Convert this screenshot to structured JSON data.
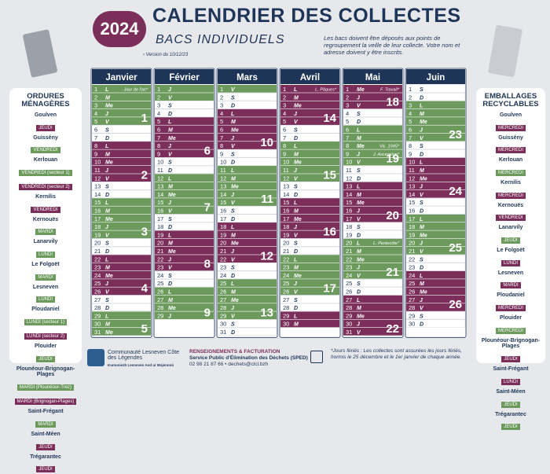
{
  "header": {
    "year": "2024",
    "title": "CALENDRIER DES COLLECTES",
    "subtitle": "BACS INDIVIDUELS",
    "version": "› Version du 10/12/23",
    "note": "Les bacs doivent être déposés aux points de regroupement la veille de leur collecte. Votre nom et adresse doivent y être inscrits."
  },
  "left_panel": {
    "title": "ORDURES MÉNAGÈRES",
    "entries": [
      {
        "town": "Goulven",
        "tags": [
          {
            "text": "JEUDI",
            "color": "#7a2e59"
          }
        ]
      },
      {
        "town": "Guissény",
        "tags": [
          {
            "text": "VENDREDI",
            "color": "#6b9a5c"
          }
        ]
      },
      {
        "town": "Kerlouan",
        "tags": [
          {
            "text": "VENDREDI (secteur 1)",
            "color": "#6b9a5c"
          },
          {
            "text": "VENDREDI (secteur 2)",
            "color": "#7a2e59"
          }
        ]
      },
      {
        "town": "Kernilis",
        "tags": [
          {
            "text": "VENDREDI",
            "color": "#7a2e59"
          }
        ]
      },
      {
        "town": "Kernouës",
        "tags": [
          {
            "text": "MARDI",
            "color": "#6b9a5c"
          }
        ]
      },
      {
        "town": "Lanarvily",
        "tags": [
          {
            "text": "LUNDI",
            "color": "#6b9a5c"
          }
        ]
      },
      {
        "town": "Le Folgoët",
        "tags": [
          {
            "text": "MARDI",
            "color": "#6b9a5c"
          }
        ]
      },
      {
        "town": "Lesneven",
        "tags": [
          {
            "text": "LUNDI",
            "color": "#6b9a5c"
          }
        ]
      },
      {
        "town": "Ploudaniel",
        "tags": [
          {
            "text": "LUNDI (secteur 1)",
            "color": "#6b9a5c"
          },
          {
            "text": "LUNDI (secteur 2)",
            "color": "#7a2e59"
          }
        ]
      },
      {
        "town": "Plouider",
        "tags": [
          {
            "text": "JEUDI",
            "color": "#6b9a5c"
          }
        ]
      },
      {
        "town": "Plounéour-Brignogan-Plages",
        "tags": [
          {
            "text": "MARDI (Plounéour-Trez)",
            "color": "#6b9a5c"
          },
          {
            "text": "MARDI (Brignogan-Plages)",
            "color": "#7a2e59"
          }
        ]
      },
      {
        "town": "Saint-Frégant",
        "tags": [
          {
            "text": "MARDI",
            "color": "#6b9a5c"
          }
        ]
      },
      {
        "town": "Saint-Méen",
        "tags": [
          {
            "text": "JEUDI",
            "color": "#7a2e59"
          }
        ]
      },
      {
        "town": "Trégarantec",
        "tags": [
          {
            "text": "JEUDI",
            "color": "#7a2e59"
          }
        ]
      }
    ]
  },
  "right_panel": {
    "title": "EMBALLAGES RECYCLABLES",
    "entries": [
      {
        "town": "Goulven",
        "tags": [
          {
            "text": "MERCREDI",
            "color": "#7a2e59"
          }
        ]
      },
      {
        "town": "Guissény",
        "tags": [
          {
            "text": "MERCREDI",
            "color": "#7a2e59"
          }
        ]
      },
      {
        "town": "Kerlouan",
        "tags": [
          {
            "text": "MERCREDI",
            "color": "#6b9a5c"
          }
        ]
      },
      {
        "town": "Kernilis",
        "tags": [
          {
            "text": "MERCREDI",
            "color": "#7a2e59"
          }
        ]
      },
      {
        "town": "Kernouës",
        "tags": [
          {
            "text": "VENDREDI",
            "color": "#7a2e59"
          }
        ]
      },
      {
        "town": "Lanarvily",
        "tags": [
          {
            "text": "JEUDI",
            "color": "#6b9a5c"
          }
        ]
      },
      {
        "town": "Le Folgoët",
        "tags": [
          {
            "text": "LUNDI",
            "color": "#7a2e59"
          }
        ]
      },
      {
        "town": "Lesneven",
        "tags": [
          {
            "text": "MARDI",
            "color": "#7a2e59"
          }
        ]
      },
      {
        "town": "Ploudaniel",
        "tags": [
          {
            "text": "MERCREDI",
            "color": "#7a2e59"
          }
        ]
      },
      {
        "town": "Plouider",
        "tags": [
          {
            "text": "MERCREDI",
            "color": "#6b9a5c"
          }
        ]
      },
      {
        "town": "Plounéour-Brignogan-Plages",
        "tags": [
          {
            "text": "JEUDI",
            "color": "#7a2e59"
          }
        ]
      },
      {
        "town": "Saint-Frégant",
        "tags": [
          {
            "text": "LUNDI",
            "color": "#7a2e59"
          }
        ]
      },
      {
        "town": "Saint-Méen",
        "tags": [
          {
            "text": "JEUDI",
            "color": "#6b9a5c"
          }
        ]
      },
      {
        "town": "Trégarantec",
        "tags": [
          {
            "text": "JEUDI",
            "color": "#6b9a5c"
          }
        ]
      }
    ]
  },
  "months": [
    {
      "name": "Janvier",
      "days": [
        [
          1,
          "L"
        ],
        [
          2,
          "M"
        ],
        [
          3,
          "Me"
        ],
        [
          4,
          "J"
        ],
        [
          5,
          "V"
        ],
        [
          6,
          "S"
        ],
        [
          7,
          "D"
        ],
        [
          8,
          "L"
        ],
        [
          9,
          "M"
        ],
        [
          10,
          "Me"
        ],
        [
          11,
          "J"
        ],
        [
          12,
          "V"
        ],
        [
          13,
          "S"
        ],
        [
          14,
          "D"
        ],
        [
          15,
          "L"
        ],
        [
          16,
          "M"
        ],
        [
          17,
          "Me"
        ],
        [
          18,
          "J"
        ],
        [
          19,
          "V"
        ],
        [
          20,
          "S"
        ],
        [
          21,
          "D"
        ],
        [
          22,
          "L"
        ],
        [
          23,
          "M"
        ],
        [
          24,
          "Me"
        ],
        [
          25,
          "J"
        ],
        [
          26,
          "V"
        ],
        [
          27,
          "S"
        ],
        [
          28,
          "D"
        ],
        [
          29,
          "L"
        ],
        [
          30,
          "M"
        ],
        [
          31,
          "Me"
        ]
      ],
      "weeks": [
        {
          "number": 1,
          "color": "#6b9a5c",
          "from": 1,
          "to": 5
        },
        {
          "number": 2,
          "color": "#7a2e59",
          "from": 8,
          "to": 12
        },
        {
          "number": 3,
          "color": "#6b9a5c",
          "from": 15,
          "to": 19
        },
        {
          "number": 4,
          "color": "#7a2e59",
          "from": 22,
          "to": 26
        },
        {
          "number": 5,
          "color": "#6b9a5c",
          "from": 29,
          "to": 31
        }
      ],
      "notes": [
        {
          "day": 1,
          "text": "Jour de l'an*"
        }
      ]
    },
    {
      "name": "Février",
      "days": [
        [
          1,
          "J"
        ],
        [
          2,
          "V"
        ],
        [
          3,
          "S"
        ],
        [
          4,
          "D"
        ],
        [
          5,
          "L"
        ],
        [
          6,
          "M"
        ],
        [
          7,
          "Me"
        ],
        [
          8,
          "J"
        ],
        [
          9,
          "V"
        ],
        [
          10,
          "S"
        ],
        [
          11,
          "D"
        ],
        [
          12,
          "L"
        ],
        [
          13,
          "M"
        ],
        [
          14,
          "Me"
        ],
        [
          15,
          "J"
        ],
        [
          16,
          "V"
        ],
        [
          17,
          "S"
        ],
        [
          18,
          "D"
        ],
        [
          19,
          "L"
        ],
        [
          20,
          "M"
        ],
        [
          21,
          "Me"
        ],
        [
          22,
          "J"
        ],
        [
          23,
          "V"
        ],
        [
          24,
          "S"
        ],
        [
          25,
          "D"
        ],
        [
          26,
          "L"
        ],
        [
          27,
          "M"
        ],
        [
          28,
          "Me"
        ],
        [
          29,
          "J"
        ]
      ],
      "weeks": [
        {
          "color": "#6b9a5c",
          "from": 1,
          "to": 2
        },
        {
          "number": 6,
          "color": "#7a2e59",
          "from": 5,
          "to": 9
        },
        {
          "number": 7,
          "color": "#6b9a5c",
          "from": 12,
          "to": 16
        },
        {
          "number": 8,
          "color": "#7a2e59",
          "from": 19,
          "to": 23
        },
        {
          "number": 9,
          "color": "#6b9a5c",
          "from": 26,
          "to": 29
        }
      ],
      "notes": []
    },
    {
      "name": "Mars",
      "days": [
        [
          1,
          "V"
        ],
        [
          2,
          "S"
        ],
        [
          3,
          "D"
        ],
        [
          4,
          "L"
        ],
        [
          5,
          "M"
        ],
        [
          6,
          "Me"
        ],
        [
          7,
          "J"
        ],
        [
          8,
          "V"
        ],
        [
          9,
          "S"
        ],
        [
          10,
          "D"
        ],
        [
          11,
          "L"
        ],
        [
          12,
          "M"
        ],
        [
          13,
          "Me"
        ],
        [
          14,
          "J"
        ],
        [
          15,
          "V"
        ],
        [
          16,
          "S"
        ],
        [
          17,
          "D"
        ],
        [
          18,
          "L"
        ],
        [
          19,
          "M"
        ],
        [
          20,
          "Me"
        ],
        [
          21,
          "J"
        ],
        [
          22,
          "V"
        ],
        [
          23,
          "S"
        ],
        [
          24,
          "D"
        ],
        [
          25,
          "L"
        ],
        [
          26,
          "M"
        ],
        [
          27,
          "Me"
        ],
        [
          28,
          "J"
        ],
        [
          29,
          "V"
        ],
        [
          30,
          "S"
        ],
        [
          31,
          "D"
        ]
      ],
      "weeks": [
        {
          "color": "#6b9a5c",
          "from": 1,
          "to": 1
        },
        {
          "number": 10,
          "color": "#7a2e59",
          "from": 4,
          "to": 8
        },
        {
          "number": 11,
          "color": "#6b9a5c",
          "from": 11,
          "to": 15
        },
        {
          "number": 12,
          "color": "#7a2e59",
          "from": 18,
          "to": 22
        },
        {
          "number": 13,
          "color": "#6b9a5c",
          "from": 25,
          "to": 29
        }
      ],
      "notes": []
    },
    {
      "name": "Avril",
      "days": [
        [
          1,
          "L"
        ],
        [
          2,
          "M"
        ],
        [
          3,
          "Me"
        ],
        [
          4,
          "J"
        ],
        [
          5,
          "V"
        ],
        [
          6,
          "S"
        ],
        [
          7,
          "D"
        ],
        [
          8,
          "L"
        ],
        [
          9,
          "M"
        ],
        [
          10,
          "Me"
        ],
        [
          11,
          "J"
        ],
        [
          12,
          "V"
        ],
        [
          13,
          "S"
        ],
        [
          14,
          "D"
        ],
        [
          15,
          "L"
        ],
        [
          16,
          "M"
        ],
        [
          17,
          "Me"
        ],
        [
          18,
          "J"
        ],
        [
          19,
          "V"
        ],
        [
          20,
          "S"
        ],
        [
          21,
          "D"
        ],
        [
          22,
          "L"
        ],
        [
          23,
          "M"
        ],
        [
          24,
          "Me"
        ],
        [
          25,
          "J"
        ],
        [
          26,
          "V"
        ],
        [
          27,
          "S"
        ],
        [
          28,
          "D"
        ],
        [
          29,
          "L"
        ],
        [
          30,
          "M"
        ]
      ],
      "weeks": [
        {
          "number": 14,
          "color": "#7a2e59",
          "from": 1,
          "to": 5
        },
        {
          "number": 15,
          "color": "#6b9a5c",
          "from": 8,
          "to": 12
        },
        {
          "number": 16,
          "color": "#7a2e59",
          "from": 15,
          "to": 19
        },
        {
          "number": 17,
          "color": "#6b9a5c",
          "from": 22,
          "to": 26
        },
        {
          "color": "#7a2e59",
          "from": 29,
          "to": 30
        }
      ],
      "notes": [
        {
          "day": 1,
          "text": "L. Pâques*"
        }
      ]
    },
    {
      "name": "Mai",
      "days": [
        [
          1,
          "Me"
        ],
        [
          2,
          "J"
        ],
        [
          3,
          "V"
        ],
        [
          4,
          "S"
        ],
        [
          5,
          "D"
        ],
        [
          6,
          "L"
        ],
        [
          7,
          "M"
        ],
        [
          8,
          "Me"
        ],
        [
          9,
          "J"
        ],
        [
          10,
          "V"
        ],
        [
          11,
          "S"
        ],
        [
          12,
          "D"
        ],
        [
          13,
          "L"
        ],
        [
          14,
          "M"
        ],
        [
          15,
          "Me"
        ],
        [
          16,
          "J"
        ],
        [
          17,
          "V"
        ],
        [
          18,
          "S"
        ],
        [
          19,
          "D"
        ],
        [
          20,
          "L"
        ],
        [
          21,
          "M"
        ],
        [
          22,
          "Me"
        ],
        [
          23,
          "J"
        ],
        [
          24,
          "V"
        ],
        [
          25,
          "S"
        ],
        [
          26,
          "D"
        ],
        [
          27,
          "L"
        ],
        [
          28,
          "M"
        ],
        [
          29,
          "Me"
        ],
        [
          30,
          "J"
        ],
        [
          31,
          "V"
        ]
      ],
      "weeks": [
        {
          "number": 18,
          "color": "#7a2e59",
          "from": 1,
          "to": 3
        },
        {
          "number": 19,
          "color": "#6b9a5c",
          "from": 6,
          "to": 10
        },
        {
          "number": 20,
          "color": "#7a2e59",
          "from": 13,
          "to": 17
        },
        {
          "number": 21,
          "color": "#6b9a5c",
          "from": 20,
          "to": 24
        },
        {
          "number": 22,
          "color": "#7a2e59",
          "from": 27,
          "to": 31
        }
      ],
      "notes": [
        {
          "day": 1,
          "text": "F. Travail*"
        },
        {
          "day": 8,
          "text": "Vic. 1945*"
        },
        {
          "day": 9,
          "text": "J. Ascension*"
        },
        {
          "day": 20,
          "text": "L. Pentecôte*"
        }
      ]
    },
    {
      "name": "Juin",
      "days": [
        [
          1,
          "S"
        ],
        [
          2,
          "D"
        ],
        [
          3,
          "L"
        ],
        [
          4,
          "M"
        ],
        [
          5,
          "Me"
        ],
        [
          6,
          "J"
        ],
        [
          7,
          "V"
        ],
        [
          8,
          "S"
        ],
        [
          9,
          "D"
        ],
        [
          10,
          "L"
        ],
        [
          11,
          "M"
        ],
        [
          12,
          "Me"
        ],
        [
          13,
          "J"
        ],
        [
          14,
          "V"
        ],
        [
          15,
          "S"
        ],
        [
          16,
          "D"
        ],
        [
          17,
          "L"
        ],
        [
          18,
          "M"
        ],
        [
          19,
          "Me"
        ],
        [
          20,
          "J"
        ],
        [
          21,
          "V"
        ],
        [
          22,
          "S"
        ],
        [
          23,
          "D"
        ],
        [
          24,
          "L"
        ],
        [
          25,
          "M"
        ],
        [
          26,
          "Me"
        ],
        [
          27,
          "J"
        ],
        [
          28,
          "V"
        ],
        [
          29,
          "S"
        ],
        [
          30,
          "D"
        ]
      ],
      "weeks": [
        {
          "number": 23,
          "color": "#6b9a5c",
          "from": 3,
          "to": 7
        },
        {
          "number": 24,
          "color": "#7a2e59",
          "from": 10,
          "to": 14
        },
        {
          "number": 25,
          "color": "#6b9a5c",
          "from": 17,
          "to": 21
        },
        {
          "number": 26,
          "color": "#7a2e59",
          "from": 24,
          "to": 28
        }
      ],
      "notes": []
    }
  ],
  "footer": {
    "org": "Communauté Lesneven Côte des Légendes",
    "org_breton": "Kumuniezh Lesneven Aod ar Mojennoù",
    "info_title": "RENSEIGNEMENTS & FACTURATION",
    "info_service": "Service Public d'Élimination des Déchets (SPED)",
    "info_contact": "02 98 21 87 66 • dechets@clcl.bzh",
    "holidays": "*Jours fériés : Les collectes sont assurées les jours fériés, hormis le 25 décembre et le 1er janvier de chaque année."
  }
}
